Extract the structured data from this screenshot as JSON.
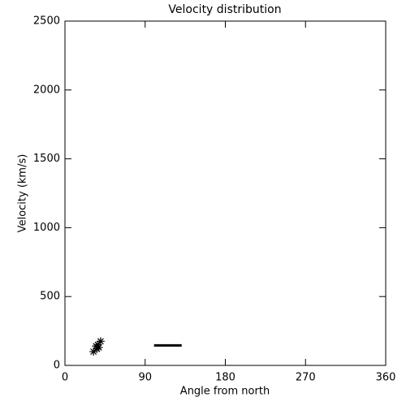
{
  "chart_data": {
    "type": "scatter",
    "title": "Velocity distribution",
    "x_label": "Angle from north",
    "y_label": "Velocity (km/s)",
    "x": [
      32,
      35,
      36,
      37,
      38,
      40
    ],
    "values": [
      100,
      140,
      120,
      150,
      130,
      175
    ],
    "color": "#000000",
    "marker": "asterisk",
    "segment": {
      "x": [
        100,
        131
      ],
      "y": [
        145,
        145
      ]
    },
    "xlim": [
      0,
      360
    ],
    "xticks": [
      0,
      90,
      180,
      270,
      360
    ],
    "ylim": [
      0,
      2500
    ],
    "yticks": [
      0,
      500,
      1000,
      1500,
      2000,
      2500
    ]
  }
}
